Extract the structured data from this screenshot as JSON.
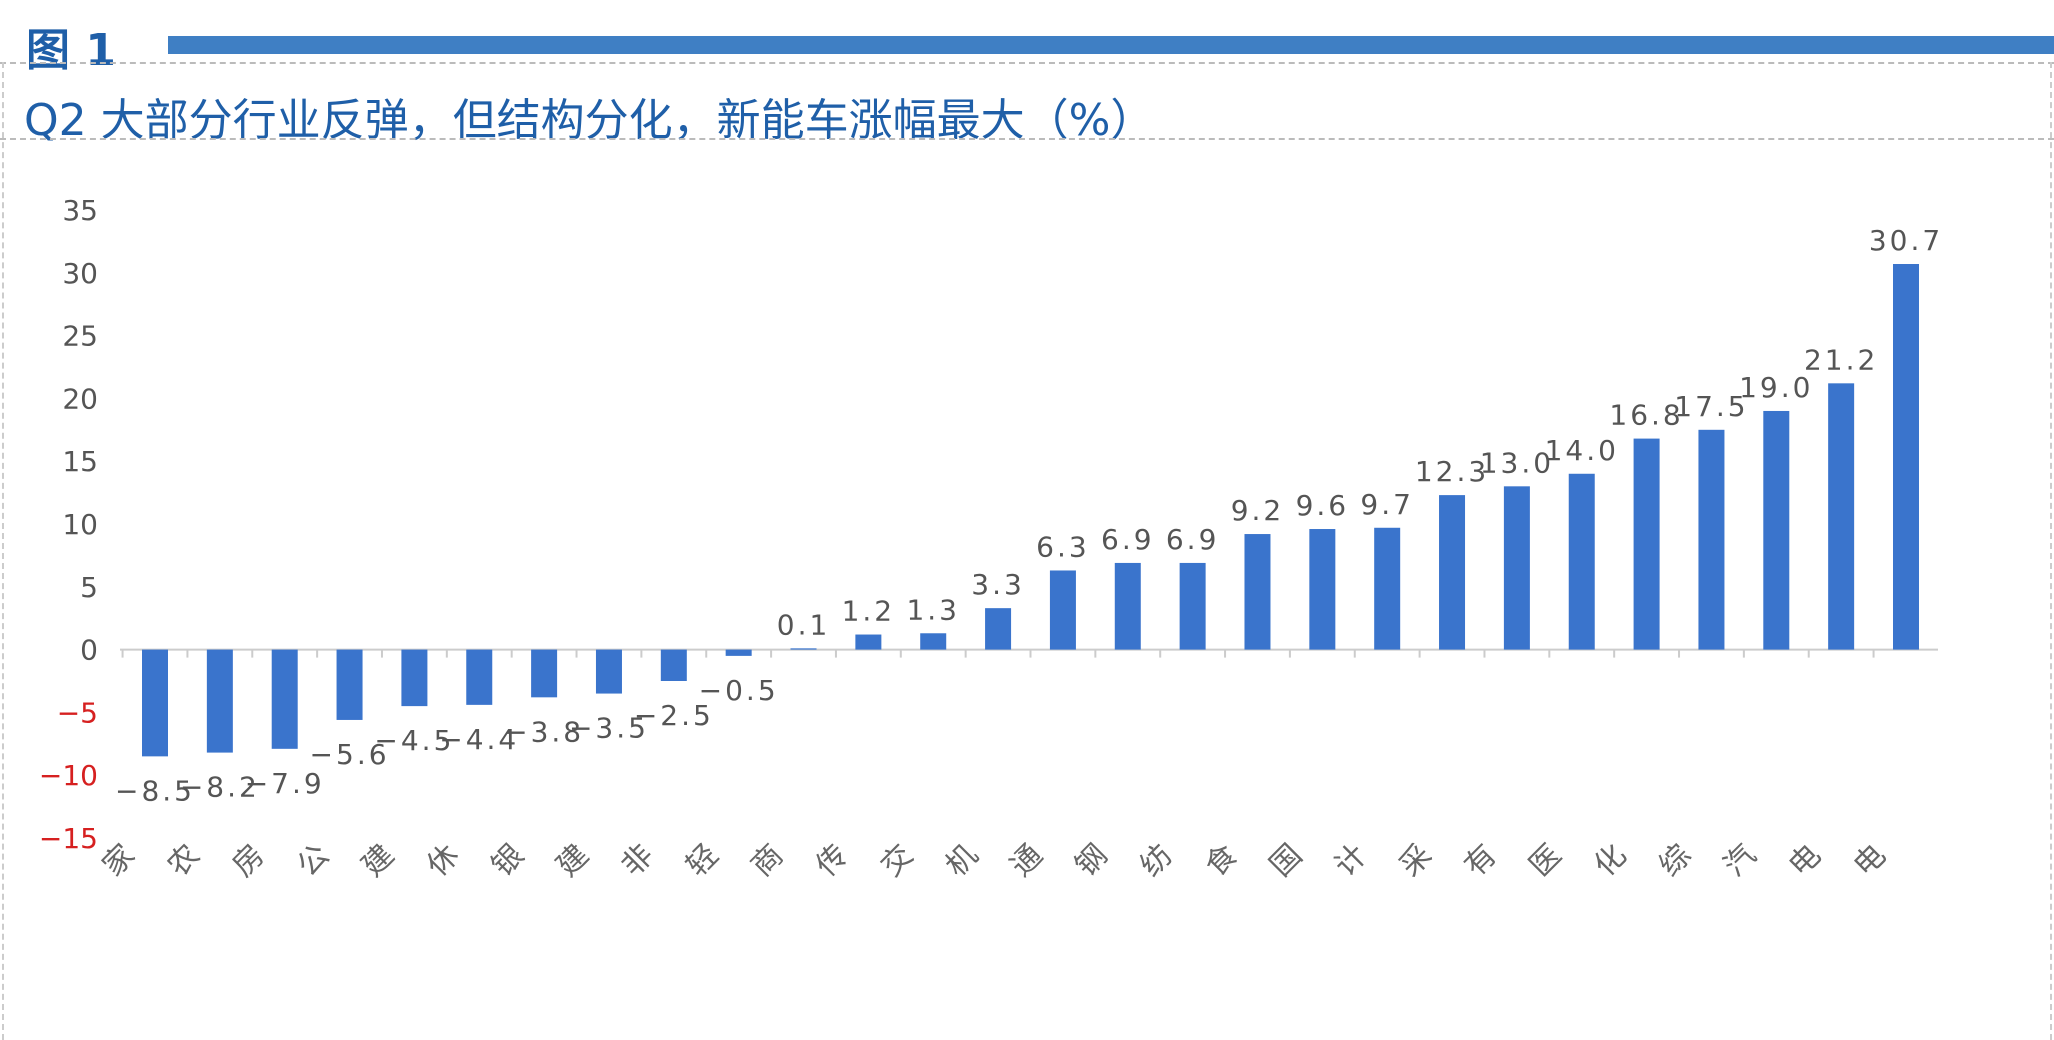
{
  "figure_label": "图 1",
  "title": "Q2 大部分行业反弹，但结构分化，新能车涨幅最大（%）",
  "colors": {
    "bar": "#3a74cc",
    "negative_tick": "#d62020",
    "title": "#1f5fa8",
    "accent_bar": "#3f7fc4"
  },
  "chart_data": {
    "type": "bar",
    "title": "Q2 大部分行业反弹，但结构分化，新能车涨幅最大（%）",
    "categories": [
      "家",
      "农",
      "房",
      "公",
      "建",
      "休",
      "银",
      "建",
      "非",
      "轻",
      "商",
      "传",
      "交",
      "机",
      "通",
      "钢",
      "纺",
      "食",
      "国",
      "计",
      "采",
      "有",
      "医",
      "化",
      "综",
      "汽",
      "电",
      "电"
    ],
    "values": [
      -8.5,
      -8.2,
      -7.9,
      -5.6,
      -4.5,
      -4.4,
      -3.8,
      -3.5,
      -2.5,
      -0.5,
      0.1,
      1.2,
      1.3,
      3.3,
      6.3,
      6.9,
      6.9,
      9.2,
      9.6,
      9.7,
      12.3,
      13.0,
      14.0,
      16.8,
      17.5,
      19.0,
      21.2,
      30.7
    ],
    "ylim": [
      -15,
      35
    ],
    "yticks": [
      35,
      30,
      25,
      20,
      15,
      10,
      5,
      0,
      -5,
      -10,
      -15
    ],
    "xlabel": "",
    "ylabel": "",
    "grid": false,
    "data_labels": true
  }
}
